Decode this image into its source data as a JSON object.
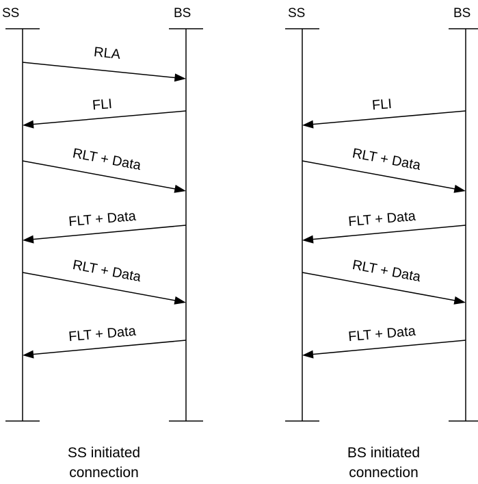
{
  "diagrams": [
    {
      "left_entity": "SS",
      "right_entity": "BS",
      "caption_line1": "SS initiated",
      "caption_line2": "connection",
      "messages": [
        {
          "label": "RLA",
          "direction": "right"
        },
        {
          "label": "FLI",
          "direction": "left"
        },
        {
          "label": "RLT + Data",
          "direction": "right"
        },
        {
          "label": "FLT + Data",
          "direction": "left"
        },
        {
          "label": "RLT + Data",
          "direction": "right"
        },
        {
          "label": "FLT + Data",
          "direction": "left"
        }
      ]
    },
    {
      "left_entity": "SS",
      "right_entity": "BS",
      "caption_line1": "BS initiated",
      "caption_line2": "connection",
      "messages": [
        {
          "label": "FLI",
          "direction": "left"
        },
        {
          "label": "RLT + Data",
          "direction": "right"
        },
        {
          "label": "FLT + Data",
          "direction": "left"
        },
        {
          "label": "RLT + Data",
          "direction": "right"
        },
        {
          "label": "FLT + Data",
          "direction": "left"
        }
      ]
    }
  ],
  "colors": {
    "line": "#000000",
    "background": "#ffffff"
  }
}
